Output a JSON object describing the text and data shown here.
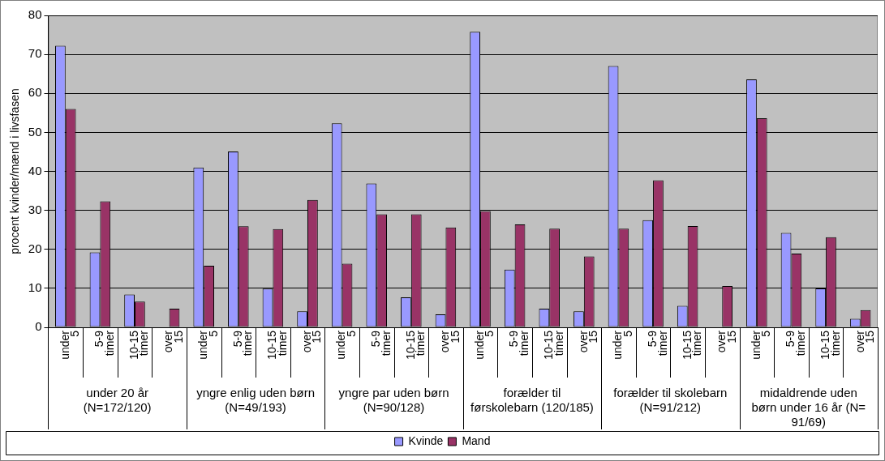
{
  "chart_data": {
    "type": "bar",
    "ylabel": "procent kvinder/mænd i livsfasen",
    "categories": [
      "under 5",
      "5-9 timer",
      "10-15 timer",
      "over 15",
      "under 5",
      "5-9 timer",
      "10-15 timer",
      "over 15",
      "under 5",
      "5-9 timer",
      "10-15 timer",
      "over 15",
      "under 5",
      "5-9 timer",
      "10-15 timer",
      "over 15",
      "under 5",
      "5-9 timer",
      "10-15 timer",
      "over 15",
      "under 5",
      "5-9 timer",
      "10-15 timer",
      "over 15"
    ],
    "series": [
      {
        "name": "Kvinde",
        "color": "#9999ff",
        "values": [
          72.2,
          19.2,
          8.4,
          0,
          41,
          45.1,
          9.9,
          4.1,
          52.3,
          36.9,
          7.7,
          3.3,
          75.8,
          14.8,
          4.8,
          4.1,
          67,
          27.5,
          5.5,
          0,
          63.6,
          24.2,
          10,
          2.2
        ]
      },
      {
        "name": "Mand",
        "color": "#993366",
        "values": [
          56,
          32.3,
          6.6,
          4.8,
          15.8,
          25.9,
          25.2,
          32.7,
          16.3,
          29,
          29,
          25.6,
          29.8,
          26.4,
          25.3,
          18.2,
          25.3,
          37.7,
          26,
          10.6,
          53.6,
          18.9,
          23.1,
          4.4
        ]
      }
    ],
    "annotations": [
      "under 20 år (N=172/120)",
      "yngre enlig uden børn (N=49/193)",
      "yngre par uden børn (N=90/128)",
      "forælder til førskolebarn (120/185)",
      "forælder til skolebarn (N=91/212)",
      "midaldrende uden børn under 16 år (N= 91/69)"
    ],
    "ylim": [
      0,
      80
    ],
    "yticks": [
      0,
      10,
      20,
      30,
      40,
      50,
      60,
      70,
      80
    ],
    "grid": "y",
    "legend": "bottom"
  }
}
